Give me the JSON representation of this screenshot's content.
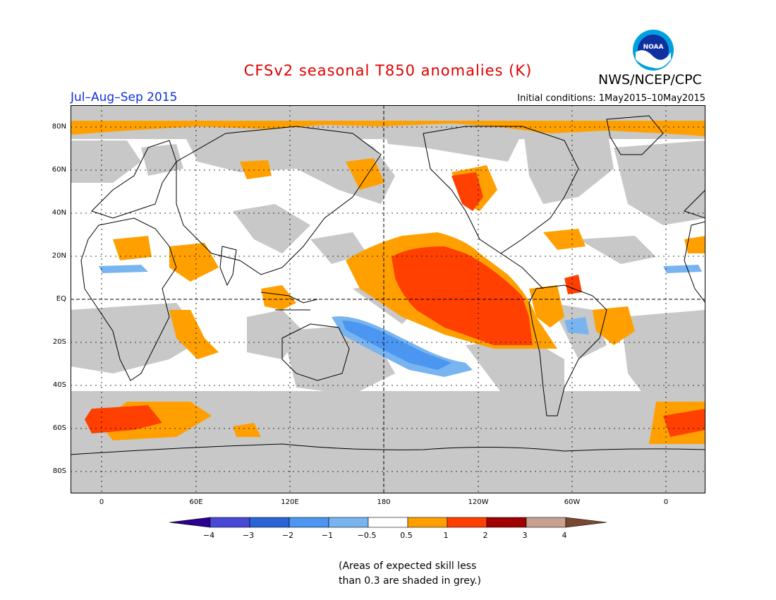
{
  "header": {
    "title": "CFSv2 seasonal T850 anomalies (K)",
    "season": "Jul–Aug–Sep 2015",
    "initial_conditions": "Initial conditions: 1May2015–10May2015",
    "agency": "NWS/NCEP/CPC",
    "logo_text": "NOAA"
  },
  "map": {
    "lat_labels": [
      "80N",
      "60N",
      "40N",
      "20N",
      "EQ",
      "20S",
      "40S",
      "60S",
      "80S"
    ],
    "lon_labels": [
      "0",
      "60E",
      "120E",
      "180",
      "120W",
      "60W",
      "0"
    ],
    "colors": {
      "grey": "#c8c8c8",
      "orange": "#ffa000",
      "red": "#ff4000",
      "light_blue": "#78b4f0",
      "blue": "#4b96f0"
    }
  },
  "colorbar": {
    "labels": [
      "−4",
      "−3",
      "−2",
      "−1",
      "−0.5",
      "0.5",
      "1",
      "2",
      "3",
      "4"
    ],
    "colors": [
      "#2a0090",
      "#4848d8",
      "#2864d8",
      "#4b96f0",
      "#78b4f0",
      "#ffffff",
      "#ffa000",
      "#ff4000",
      "#a00000",
      "#c8a090",
      "#7a4830"
    ]
  },
  "footnote": {
    "line1": "(Areas of expected skill less",
    "line2": "than 0.3 are shaded in grey.)"
  }
}
